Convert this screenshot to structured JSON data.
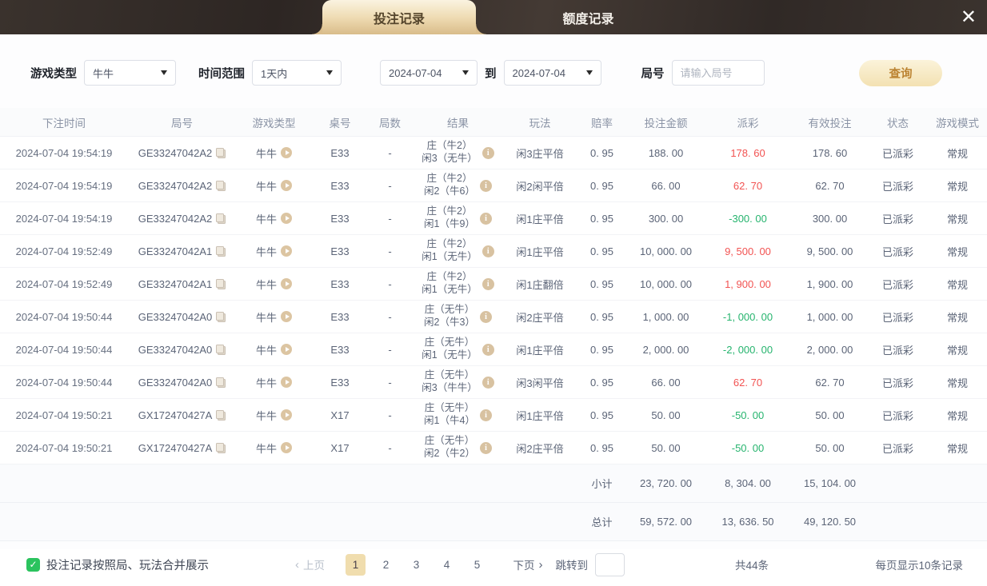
{
  "header": {
    "tabs": [
      {
        "label": "投注记录",
        "active": true
      },
      {
        "label": "额度记录",
        "active": false
      }
    ],
    "close_glyph": "✕"
  },
  "filters": {
    "game_type_label": "游戏类型",
    "game_type_value": "牛牛",
    "time_range_label": "时间范围",
    "time_range_value": "1天内",
    "date_from": "2024-07-04",
    "to_label": "到",
    "date_to": "2024-07-04",
    "round_label": "局号",
    "round_placeholder": "请输入局号",
    "query_button": "查询"
  },
  "table": {
    "columns": [
      "下注时间",
      "局号",
      "游戏类型",
      "桌号",
      "局数",
      "结果",
      "玩法",
      "赔率",
      "投注金额",
      "派彩",
      "有效投注",
      "状态",
      "游戏模式"
    ],
    "rows": [
      {
        "time": "2024-07-04 19:54:19",
        "round_id": "GE33247042A2",
        "game": "牛牛",
        "table_no": "E33",
        "rounds": "-",
        "result_line1": "庄（牛2）",
        "result_line2": "闲3（无牛）",
        "play": "闲3庄平倍",
        "odds": "0. 95",
        "bet": "188. 00",
        "payout": "178. 60",
        "payout_color": "red",
        "valid": "178. 60",
        "status": "已派彩",
        "mode": "常规"
      },
      {
        "time": "2024-07-04 19:54:19",
        "round_id": "GE33247042A2",
        "game": "牛牛",
        "table_no": "E33",
        "rounds": "-",
        "result_line1": "庄（牛2）",
        "result_line2": "闲2（牛6）",
        "play": "闲2闲平倍",
        "odds": "0. 95",
        "bet": "66. 00",
        "payout": "62. 70",
        "payout_color": "red",
        "valid": "62. 70",
        "status": "已派彩",
        "mode": "常规"
      },
      {
        "time": "2024-07-04 19:54:19",
        "round_id": "GE33247042A2",
        "game": "牛牛",
        "table_no": "E33",
        "rounds": "-",
        "result_line1": "庄（牛2）",
        "result_line2": "闲1（牛9）",
        "play": "闲1庄平倍",
        "odds": "0. 95",
        "bet": "300. 00",
        "payout": "-300. 00",
        "payout_color": "green",
        "valid": "300. 00",
        "status": "已派彩",
        "mode": "常规"
      },
      {
        "time": "2024-07-04 19:52:49",
        "round_id": "GE33247042A1",
        "game": "牛牛",
        "table_no": "E33",
        "rounds": "-",
        "result_line1": "庄（牛2）",
        "result_line2": "闲1（无牛）",
        "play": "闲1庄平倍",
        "odds": "0. 95",
        "bet": "10, 000. 00",
        "payout": "9, 500. 00",
        "payout_color": "red",
        "valid": "9, 500. 00",
        "status": "已派彩",
        "mode": "常规"
      },
      {
        "time": "2024-07-04 19:52:49",
        "round_id": "GE33247042A1",
        "game": "牛牛",
        "table_no": "E33",
        "rounds": "-",
        "result_line1": "庄（牛2）",
        "result_line2": "闲1（无牛）",
        "play": "闲1庄翻倍",
        "odds": "0. 95",
        "bet": "10, 000. 00",
        "payout": "1, 900. 00",
        "payout_color": "red",
        "valid": "1, 900. 00",
        "status": "已派彩",
        "mode": "常规"
      },
      {
        "time": "2024-07-04 19:50:44",
        "round_id": "GE33247042A0",
        "game": "牛牛",
        "table_no": "E33",
        "rounds": "-",
        "result_line1": "庄（无牛）",
        "result_line2": "闲2（牛3）",
        "play": "闲2庄平倍",
        "odds": "0. 95",
        "bet": "1, 000. 00",
        "payout": "-1, 000. 00",
        "payout_color": "green",
        "valid": "1, 000. 00",
        "status": "已派彩",
        "mode": "常规"
      },
      {
        "time": "2024-07-04 19:50:44",
        "round_id": "GE33247042A0",
        "game": "牛牛",
        "table_no": "E33",
        "rounds": "-",
        "result_line1": "庄（无牛）",
        "result_line2": "闲1（无牛）",
        "play": "闲1庄平倍",
        "odds": "0. 95",
        "bet": "2, 000. 00",
        "payout": "-2, 000. 00",
        "payout_color": "green",
        "valid": "2, 000. 00",
        "status": "已派彩",
        "mode": "常规"
      },
      {
        "time": "2024-07-04 19:50:44",
        "round_id": "GE33247042A0",
        "game": "牛牛",
        "table_no": "E33",
        "rounds": "-",
        "result_line1": "庄（无牛）",
        "result_line2": "闲3（牛牛）",
        "play": "闲3闲平倍",
        "odds": "0. 95",
        "bet": "66. 00",
        "payout": "62. 70",
        "payout_color": "red",
        "valid": "62. 70",
        "status": "已派彩",
        "mode": "常规"
      },
      {
        "time": "2024-07-04 19:50:21",
        "round_id": "GX172470427A",
        "game": "牛牛",
        "table_no": "X17",
        "rounds": "-",
        "result_line1": "庄（无牛）",
        "result_line2": "闲1（牛4）",
        "play": "闲1庄平倍",
        "odds": "0. 95",
        "bet": "50. 00",
        "payout": "-50. 00",
        "payout_color": "green",
        "valid": "50. 00",
        "status": "已派彩",
        "mode": "常规"
      },
      {
        "time": "2024-07-04 19:50:21",
        "round_id": "GX172470427A",
        "game": "牛牛",
        "table_no": "X17",
        "rounds": "-",
        "result_line1": "庄（无牛）",
        "result_line2": "闲2（牛2）",
        "play": "闲2庄平倍",
        "odds": "0. 95",
        "bet": "50. 00",
        "payout": "-50. 00",
        "payout_color": "green",
        "valid": "50. 00",
        "status": "已派彩",
        "mode": "常规"
      }
    ],
    "subtotal": {
      "label": "小计",
      "bet": "23, 720. 00",
      "payout": "8, 304. 00",
      "payout_color": "red",
      "valid": "15, 104. 00"
    },
    "total": {
      "label": "总计",
      "bet": "59, 572. 00",
      "payout": "13, 636. 50",
      "payout_color": "red",
      "valid": "49, 120. 50"
    }
  },
  "footer": {
    "merge_label": "投注记录按照局、玩法合并展示",
    "prev_glyph": "‹",
    "prev_label": "上页",
    "next_label": "下页",
    "next_glyph": "›",
    "pages": [
      {
        "label": "1",
        "state": "active"
      },
      {
        "label": "2",
        "state": ""
      },
      {
        "label": "3",
        "state": ""
      },
      {
        "label": "4",
        "state": ""
      },
      {
        "label": "5",
        "state": ""
      }
    ],
    "jump_label": "跳转到",
    "jump_value": "",
    "total_count": "共44条",
    "page_size": "每页显示10条记录"
  },
  "colors": {
    "accent_tan": "#efdcb4",
    "payout_red": "#f25352",
    "payout_green": "#26b46e",
    "checkbox_green": "#2bc35e"
  }
}
